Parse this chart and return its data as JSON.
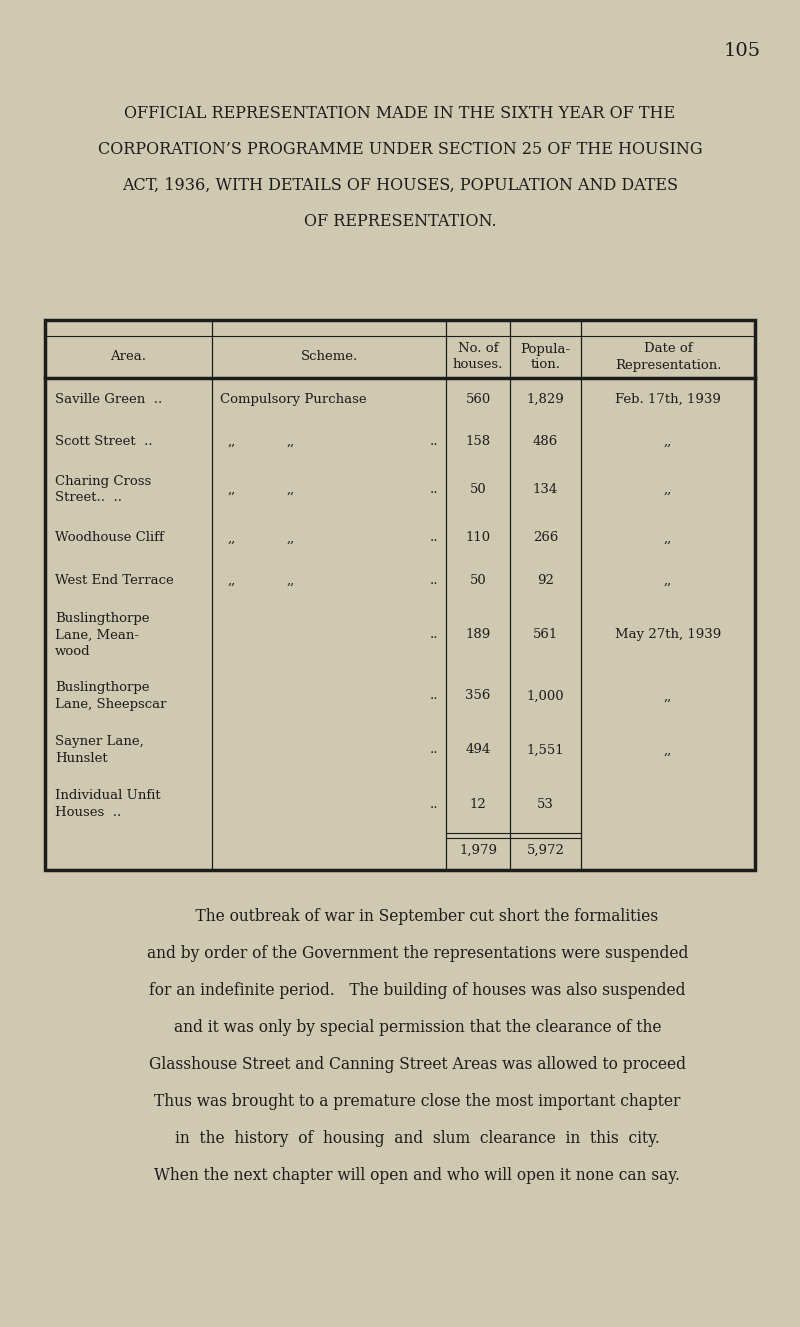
{
  "page_number": "105",
  "bg_color": "#cec9b0",
  "text_color": "#1c1c1c",
  "title_lines": [
    "OFFICIAL REPRESENTATION MADE IN THE SIXTH YEAR OF THE",
    "CORPORATION’S PROGRAMME UNDER SECTION 25 OF THE HOUSING",
    "ACT, 1936, WITH DETAILS OF HOUSES, POPULATION AND DATES",
    "OF REPRESENTATION."
  ],
  "table_header": [
    "Area.",
    "Scheme.",
    "No. of\nhouses.",
    "Popula-\ntion.",
    "Date of\nRepresentation."
  ],
  "rows": [
    {
      "area": "Saville Green  ..",
      "scheme_left": "Compulsory Purchase",
      "scheme_right": "",
      "houses": "560",
      "population": "1,829",
      "date": "Feb. 17th, 1939",
      "nlines": 1
    },
    {
      "area": "Scott Street  ..",
      "scheme_left": ",,",
      "scheme_right": ",,  ..",
      "houses": "158",
      "population": "486",
      "date": ",,",
      "nlines": 1
    },
    {
      "area": "Charing Cross\nStreet..  ..",
      "scheme_left": ",,",
      "scheme_right": ",,  ..",
      "houses": "50",
      "population": "134",
      "date": ",,",
      "nlines": 2
    },
    {
      "area": "Woodhouse Cliff",
      "scheme_left": ",,",
      "scheme_right": ",,  ..",
      "houses": "110",
      "population": "266",
      "date": ",,",
      "nlines": 1
    },
    {
      "area": "West End Terrace",
      "scheme_left": ",,",
      "scheme_right": ",,  ..",
      "houses": "50",
      "population": "92",
      "date": ",,",
      "nlines": 1
    },
    {
      "area": "Buslingthorpe\nLane, Mean-\nwood",
      "scheme_left": "",
      "scheme_right": "..",
      "houses": "189",
      "population": "561",
      "date": "May 27th, 1939",
      "nlines": 3
    },
    {
      "area": "Buslingthorpe\nLane, Sheepscar",
      "scheme_left": "",
      "scheme_right": "..",
      "houses": "356",
      "population": "1,000",
      "date": ",,",
      "nlines": 2
    },
    {
      "area": "Sayner Lane,\nHunslet",
      "scheme_left": "",
      "scheme_right": "..",
      "houses": "494",
      "population": "1,551",
      "date": ",,",
      "nlines": 2
    },
    {
      "area": "Individual Unfit\nHouses  ..",
      "scheme_left": "",
      "scheme_right": "..",
      "houses": "12",
      "population": "53",
      "date": "",
      "nlines": 2
    },
    {
      "area": "",
      "scheme_left": "",
      "scheme_right": "",
      "houses": "1,979",
      "population": "5,972",
      "date": "",
      "nlines": 1
    }
  ],
  "body_text": "    The outbreak of war in September cut short the formalities and by order of the Government the representations were suspended for an indefinite period.   The building of houses was also suspended and it was only by special permission that the clearance of the Glasshouse Street and Canning Street Areas was allowed to proceed Thus was brought to a premature close the most important chapter in  the  history  of  housing  and  slum  clearance  in  this  city. When the next chapter will open and who will open it none can say.",
  "body_lines": [
    "    The outbreak of war in September cut short the formalities",
    "and by order of the Government the representations were suspended",
    "for an indefinite period.   The building of houses was also suspended",
    "and it was only by special permission that the clearance of the",
    "Glasshouse Street and Canning Street Areas was allowed to proceed",
    "Thus was brought to a premature close the most important chapter",
    "in  the  history  of  housing  and  slum  clearance  in  this  city.",
    "When the next chapter will open and who will open it none can say."
  ]
}
